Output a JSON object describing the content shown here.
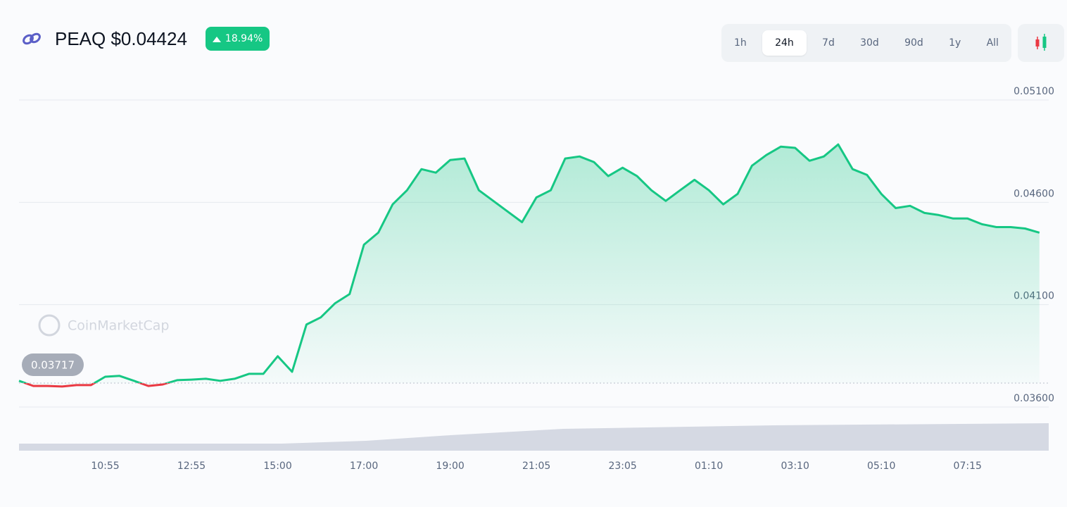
{
  "header": {
    "title": "PEAQ $0.04424",
    "change": "18.94%"
  },
  "timeframes": [
    "1h",
    "24h",
    "7d",
    "30d",
    "90d",
    "1y",
    "All"
  ],
  "active_timeframe": "24h",
  "watermark": "CoinMarketCap",
  "chart_data": {
    "type": "line",
    "categories": [
      null,
      null,
      null,
      null,
      null,
      null,
      "10:55",
      null,
      null,
      null,
      null,
      null,
      "12:55",
      null,
      null,
      null,
      null,
      null,
      "15:00",
      null,
      null,
      null,
      null,
      null,
      "17:00",
      null,
      null,
      null,
      null,
      null,
      "19:00",
      null,
      null,
      null,
      null,
      null,
      "21:05",
      null,
      null,
      null,
      null,
      null,
      "23:05",
      null,
      null,
      null,
      null,
      null,
      "01:10",
      null,
      null,
      null,
      null,
      null,
      "03:10",
      null,
      null,
      null,
      null,
      null,
      "05:10",
      null,
      null,
      null,
      null,
      null,
      "07:15",
      null,
      null,
      null,
      null,
      null
    ],
    "series": [
      {
        "name": "PEAQ",
        "color": "#16c784",
        "below_color": "#ea3943",
        "values": [
          0.03728,
          0.03703,
          0.03703,
          0.037,
          0.03707,
          0.03707,
          0.03748,
          0.03752,
          0.03728,
          0.03703,
          0.0371,
          0.03731,
          0.03734,
          0.03738,
          0.03728,
          0.03738,
          0.03762,
          0.03762,
          0.03848,
          0.03772,
          0.04003,
          0.04038,
          0.04107,
          0.04152,
          0.04393,
          0.04452,
          0.0459,
          0.04659,
          0.04762,
          0.04745,
          0.04807,
          0.04814,
          0.04659,
          0.04607,
          0.04555,
          0.04503,
          0.04624,
          0.04659,
          0.04814,
          0.04824,
          0.04797,
          0.04728,
          0.04769,
          0.04728,
          0.04659,
          0.04607,
          0.04659,
          0.0471,
          0.04659,
          0.0459,
          0.04641,
          0.04779,
          0.04831,
          0.04872,
          0.04866,
          0.04803,
          0.04824,
          0.04883,
          0.04762,
          0.04734,
          0.04641,
          0.04572,
          0.04583,
          0.04548,
          0.04538,
          0.04521,
          0.04521,
          0.04493,
          0.04479,
          0.04479,
          0.04472,
          0.04452
        ]
      }
    ],
    "reference": {
      "value": 0.03717,
      "label": "0.03717"
    },
    "ylim": [
      0.036,
      0.051
    ],
    "yticks": [
      {
        "value": 0.036,
        "label": "0.03600"
      },
      {
        "value": 0.041,
        "label": "0.04100"
      },
      {
        "value": 0.046,
        "label": "0.04600"
      },
      {
        "value": 0.051,
        "label": "0.05100"
      }
    ],
    "grid": true
  }
}
